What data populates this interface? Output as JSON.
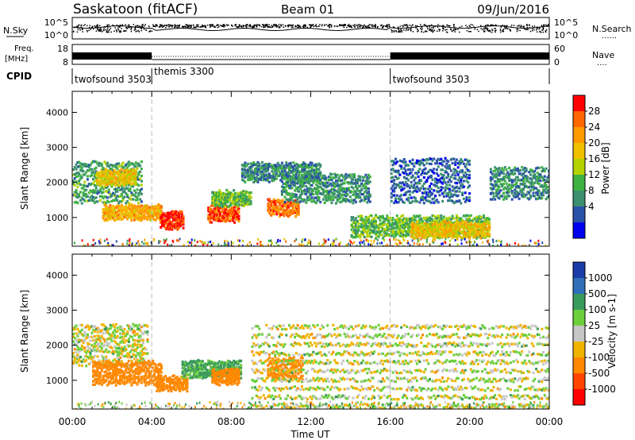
{
  "header": {
    "station": "Saskatoon (fitACF)",
    "beam": "Beam 01",
    "date": "09/Jun/2016"
  },
  "noise_panel": {
    "left_label": "N.Sky",
    "right_label": "N.Search",
    "right_label_line": "......",
    "y_ticks": [
      "10^5",
      "10^0"
    ]
  },
  "freq_panel": {
    "label_line1": "Freq.",
    "label_line2": "[MHz]",
    "left_ticks": [
      "18",
      "8"
    ],
    "right_ticks": [
      "60",
      "0"
    ],
    "right_label": "Nave",
    "right_label_line": "...."
  },
  "cpid": {
    "label": "CPID",
    "segments": [
      {
        "name": "twofsound 3503",
        "start": 0,
        "end": 4
      },
      {
        "name": "themis 3300",
        "start": 4,
        "end": 16
      },
      {
        "name": "twofsound 3503",
        "start": 16,
        "end": 24
      }
    ]
  },
  "power_colorbar": {
    "label": "Power [dB]",
    "ticks": [
      "28",
      "24",
      "20",
      "16",
      "12",
      "8",
      "4"
    ],
    "colors": [
      "#ff0000",
      "#ff6600",
      "#ff9900",
      "#f0c000",
      "#b4d200",
      "#3fb142",
      "#3b8f6f",
      "#2a52a8",
      "#0000ee"
    ]
  },
  "velocity_colorbar": {
    "label": "Velocity [m s-1]",
    "ticks": [
      "1000",
      "500",
      "100",
      "25",
      "-25",
      "-100",
      "-500",
      "-1000"
    ],
    "colors": [
      "#1a3ca8",
      "#2f6fb8",
      "#3a9a5c",
      "#6ccf3c",
      "#c6c6c6",
      "#f0b400",
      "#ff8800",
      "#ff4400",
      "#ff0000"
    ]
  },
  "axes": {
    "ylabel": "Slant Range [km]",
    "xlabel": "Time UT",
    "y_ticks": [
      "4000",
      "3000",
      "2000",
      "1000"
    ],
    "x_ticks": [
      "00:00",
      "04:00",
      "08:00",
      "12:00",
      "16:00",
      "20:00",
      "00:00"
    ]
  },
  "chart_data": [
    {
      "type": "heatmap",
      "title": "",
      "xlabel": "",
      "ylabel": "Slant Range [km]",
      "xlim": [
        0,
        24
      ],
      "ylim": [
        180,
        4600
      ],
      "x_unit": "hours UT",
      "z_label": "Power [dB]",
      "z_range": [
        0,
        30
      ],
      "regions": [
        {
          "t0": 0.0,
          "t1": 3.5,
          "r0": 1500,
          "r1": 2700,
          "power": 10
        },
        {
          "t0": 1.2,
          "t1": 3.2,
          "r0": 2000,
          "r1": 2400,
          "power": 18
        },
        {
          "t0": 1.5,
          "t1": 4.5,
          "r0": 1000,
          "r1": 1400,
          "power": 20
        },
        {
          "t0": 4.4,
          "t1": 5.6,
          "r0": 750,
          "r1": 1200,
          "power": 28
        },
        {
          "t0": 6.8,
          "t1": 8.4,
          "r0": 950,
          "r1": 1350,
          "power": 26
        },
        {
          "t0": 9.8,
          "t1": 11.4,
          "r0": 1100,
          "r1": 1550,
          "power": 24
        },
        {
          "t0": 7.0,
          "t1": 9.0,
          "r0": 1400,
          "r1": 1800,
          "power": 12
        },
        {
          "t0": 8.5,
          "t1": 12.5,
          "r0": 2100,
          "r1": 2600,
          "power": 8
        },
        {
          "t0": 10.5,
          "t1": 15.0,
          "r0": 1500,
          "r1": 2300,
          "power": 9
        },
        {
          "t0": 14.0,
          "t1": 21.0,
          "r0": 500,
          "r1": 1100,
          "power": 12
        },
        {
          "t0": 17.0,
          "t1": 21.0,
          "r0": 500,
          "r1": 900,
          "power": 18
        },
        {
          "t0": 16.0,
          "t1": 20.0,
          "r0": 1500,
          "r1": 2800,
          "power": 6
        },
        {
          "t0": 21.0,
          "t1": 24.0,
          "r0": 1600,
          "r1": 2500,
          "power": 8
        }
      ]
    },
    {
      "type": "heatmap",
      "title": "",
      "xlabel": "Time UT",
      "ylabel": "Slant Range [km]",
      "xlim": [
        0,
        24
      ],
      "ylim": [
        180,
        4600
      ],
      "x_unit": "hours UT",
      "z_label": "Velocity [m s-1]",
      "z_range": [
        -1000,
        1000
      ],
      "regions": [
        {
          "t0": 0.0,
          "t1": 3.8,
          "r0": 1500,
          "r1": 2700,
          "velocity": 0
        },
        {
          "t0": 1.0,
          "t1": 4.5,
          "r0": 950,
          "r1": 1600,
          "velocity": -300
        },
        {
          "t0": 4.2,
          "t1": 5.8,
          "r0": 750,
          "r1": 1150,
          "velocity": -200
        },
        {
          "t0": 5.5,
          "t1": 8.5,
          "r0": 1150,
          "r1": 1600,
          "velocity": 150
        },
        {
          "t0": 7.0,
          "t1": 8.4,
          "r0": 950,
          "r1": 1350,
          "velocity": -250
        },
        {
          "t0": 9.8,
          "t1": 11.6,
          "r0": 1100,
          "r1": 1700,
          "velocity": -300
        },
        {
          "t0": 9.0,
          "t1": 24.0,
          "r0": 300,
          "r1": 2800,
          "velocity": 0
        }
      ]
    }
  ]
}
